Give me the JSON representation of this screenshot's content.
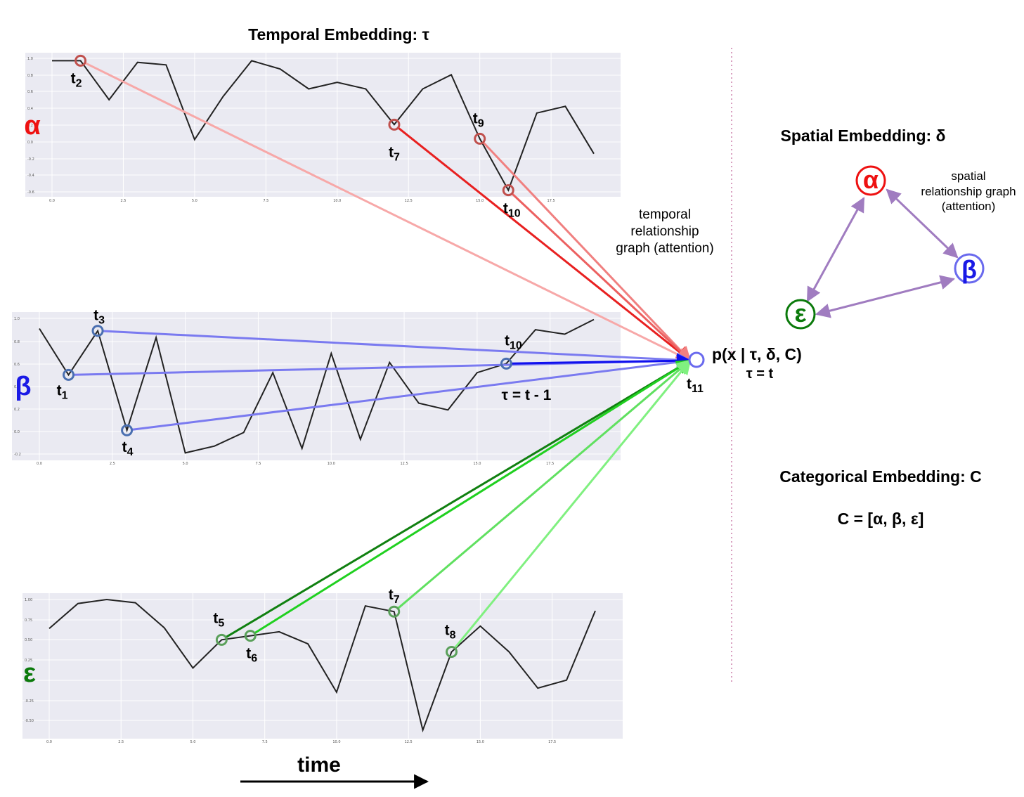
{
  "titles": {
    "temporal": "Temporal Embedding: τ",
    "spatial": "Spatial Embedding: δ",
    "categorical": "Categorical Embedding: C",
    "categorical_formula": "C = [α, β, ε]"
  },
  "notes": {
    "temporal_graph": [
      "temporal",
      "relationship",
      "graph (attention)"
    ],
    "spatial_graph": [
      "spatial",
      "relationship graph",
      "(attention)"
    ],
    "tau_eq_t_minus_1": "τ = t - 1",
    "target_prob": "p(x | τ, δ, C)",
    "tau_eq_t": "τ = t",
    "target_time": "t11",
    "time_axis": "time"
  },
  "colors": {
    "alpha": "#ee1111",
    "beta": "#1a1ae6",
    "epsilon": "#0b7a0b",
    "graph_edge": "#a07cc0",
    "panel_bg": "#eaeaf2",
    "divider": "#d9a0c0"
  },
  "x_ticks": [
    "0.0",
    "2.5",
    "5.0",
    "7.5",
    "10.0",
    "12.5",
    "15.0",
    "17.5"
  ],
  "chart_data": [
    {
      "type": "line",
      "series_label": "α",
      "x": [
        0,
        1,
        2,
        3,
        4,
        5,
        6,
        7,
        8,
        9,
        10,
        11,
        12,
        13,
        14,
        15,
        16,
        17,
        18,
        19
      ],
      "values": [
        0.98,
        0.98,
        0.51,
        0.96,
        0.93,
        0.03,
        0.55,
        0.98,
        0.88,
        0.64,
        0.72,
        0.64,
        0.21,
        0.64,
        0.81,
        0.04,
        -0.58,
        0.35,
        0.43,
        -0.14
      ],
      "y_ticks": [
        "1.0",
        "0.8",
        "0.6",
        "0.4",
        "0.2",
        "0.0",
        "-0.2",
        "-0.4",
        "-0.6"
      ],
      "highlighted": [
        {
          "x": 1,
          "label": "t",
          "sub": "2"
        },
        {
          "x": 12,
          "label": "t",
          "sub": "7"
        },
        {
          "x": 15,
          "label": "t",
          "sub": "9"
        },
        {
          "x": 16,
          "label": "t",
          "sub": "10"
        }
      ]
    },
    {
      "type": "line",
      "series_label": "β",
      "x": [
        0,
        1,
        2,
        3,
        4,
        5,
        6,
        7,
        8,
        9,
        10,
        11,
        12,
        13,
        14,
        15,
        16,
        17,
        18,
        19
      ],
      "values": [
        0.91,
        0.5,
        0.89,
        0.01,
        0.83,
        -0.19,
        -0.13,
        -0.01,
        0.52,
        -0.15,
        0.69,
        -0.07,
        0.61,
        0.25,
        0.19,
        0.52,
        0.6,
        0.9,
        0.86,
        0.99
      ],
      "y_ticks": [
        "1.0",
        "0.8",
        "0.6",
        "0.4",
        "0.2",
        "0.0",
        "-0.2"
      ],
      "highlighted": [
        {
          "x": 1,
          "label": "t",
          "sub": "1"
        },
        {
          "x": 2,
          "label": "t",
          "sub": "3"
        },
        {
          "x": 3,
          "label": "t",
          "sub": "4"
        },
        {
          "x": 16,
          "label": "t",
          "sub": "10"
        }
      ]
    },
    {
      "type": "line",
      "series_label": "ε",
      "x": [
        0,
        1,
        2,
        3,
        4,
        5,
        6,
        7,
        8,
        9,
        10,
        11,
        12,
        13,
        14,
        15,
        16,
        17,
        18,
        19
      ],
      "values": [
        0.64,
        0.95,
        1.0,
        0.96,
        0.65,
        0.15,
        0.5,
        0.55,
        0.6,
        0.45,
        -0.15,
        0.92,
        0.85,
        -0.62,
        0.35,
        0.67,
        0.35,
        -0.1,
        0.0,
        0.86
      ],
      "y_ticks": [
        "1.00",
        "0.75",
        "0.50",
        "0.25",
        "0.00",
        "-0.25",
        "-0.50"
      ],
      "highlighted": [
        {
          "x": 6,
          "label": "t",
          "sub": "5"
        },
        {
          "x": 7,
          "label": "t",
          "sub": "6"
        },
        {
          "x": 12,
          "label": "t",
          "sub": "7"
        },
        {
          "x": 14,
          "label": "t",
          "sub": "8"
        }
      ]
    }
  ],
  "spatial_graph": {
    "nodes": [
      {
        "id": "alpha",
        "label": "α"
      },
      {
        "id": "beta",
        "label": "β"
      },
      {
        "id": "epsilon",
        "label": "ε"
      }
    ],
    "edges": [
      [
        "alpha",
        "beta"
      ],
      [
        "alpha",
        "epsilon"
      ],
      [
        "beta",
        "epsilon"
      ]
    ]
  }
}
